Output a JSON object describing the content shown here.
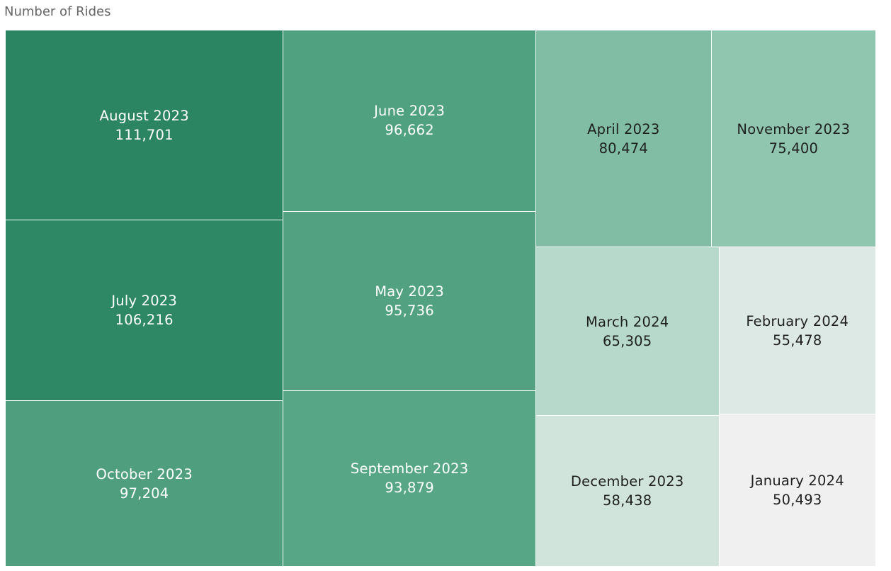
{
  "chart_data": {
    "type": "treemap",
    "title": "Number of Rides",
    "items": [
      {
        "label": "August 2023",
        "value": 111701,
        "display": "111,701",
        "color": "#2b8462",
        "text_color": "#ffffff"
      },
      {
        "label": "July 2023",
        "value": 106216,
        "display": "106,216",
        "color": "#2f8865",
        "text_color": "#ffffff"
      },
      {
        "label": "October 2023",
        "value": 97204,
        "display": "97,204",
        "color": "#4f9f7f",
        "text_color": "#ffffff"
      },
      {
        "label": "June 2023",
        "value": 96662,
        "display": "96,662",
        "color": "#50a17f",
        "text_color": "#ffffff"
      },
      {
        "label": "May 2023",
        "value": 95736,
        "display": "95,736",
        "color": "#52a281",
        "text_color": "#ffffff"
      },
      {
        "label": "September 2023",
        "value": 93879,
        "display": "93,879",
        "color": "#57a686",
        "text_color": "#ffffff"
      },
      {
        "label": "April 2023",
        "value": 80474,
        "display": "80,474",
        "color": "#80bda4",
        "text_color": "#1f1f1f"
      },
      {
        "label": "November 2023",
        "value": 75400,
        "display": "75,400",
        "color": "#90c6b0",
        "text_color": "#1f1f1f"
      },
      {
        "label": "March 2024",
        "value": 65305,
        "display": "65,305",
        "color": "#b6d9cb",
        "text_color": "#1f1f1f"
      },
      {
        "label": "February 2024",
        "value": 55478,
        "display": "55,478",
        "color": "#dde9e4",
        "text_color": "#1f1f1f"
      },
      {
        "label": "December 2023",
        "value": 58438,
        "display": "58,438",
        "color": "#d0e4dc",
        "text_color": "#1f1f1f"
      },
      {
        "label": "January 2024",
        "value": 50493,
        "display": "50,493",
        "color": "#f0f0f0",
        "text_color": "#1f1f1f"
      }
    ]
  }
}
